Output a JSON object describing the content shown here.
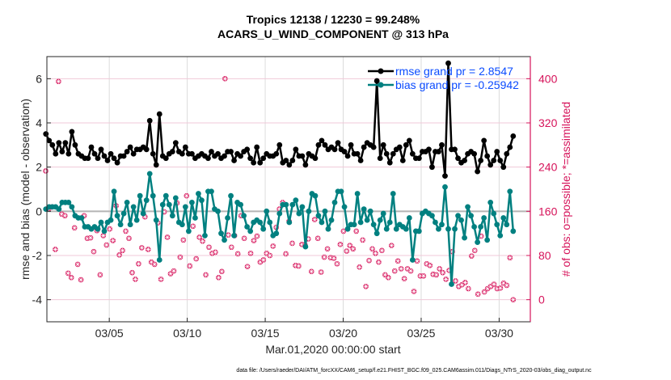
{
  "chart_data": {
    "type": "line",
    "title": "Tropics 12138 / 12230 = 99.248%",
    "subtitle": "ACARS_U_WIND_COMPONENT @ 313 hPa",
    "xlabel": "Mar.01,2020 00:00:00 start",
    "ylabel": "rmse and bias (model - observation)",
    "y2label": "# of obs: o=possible; *=assimilated",
    "footnote": "data file: /Users/raeder/DAI/ATM_forcXX/CAM6_setup/f.e21.FHIST_BGC.f09_025.CAM6assim.011/Diags_NTrS_2020-03/obs_diag_output.nc",
    "xlim": [
      1,
      32
    ],
    "ylim": [
      -5,
      7
    ],
    "y2lim": [
      -40,
      440
    ],
    "x_ticks": [
      {
        "value": 5,
        "label": "03/05"
      },
      {
        "value": 10,
        "label": "03/10"
      },
      {
        "value": 15,
        "label": "03/15"
      },
      {
        "value": 20,
        "label": "03/20"
      },
      {
        "value": 25,
        "label": "03/25"
      },
      {
        "value": 30,
        "label": "03/30"
      }
    ],
    "y_ticks": [
      {
        "value": -4,
        "label": "-4"
      },
      {
        "value": -2,
        "label": "-2"
      },
      {
        "value": 0,
        "label": "0"
      },
      {
        "value": 2,
        "label": "2"
      },
      {
        "value": 4,
        "label": "4"
      },
      {
        "value": 6,
        "label": "6"
      }
    ],
    "y2_ticks": [
      {
        "value": 0,
        "label": "0"
      },
      {
        "value": 80,
        "label": "80"
      },
      {
        "value": 160,
        "label": "160"
      },
      {
        "value": 240,
        "label": "240"
      },
      {
        "value": 320,
        "label": "320"
      },
      {
        "value": 400,
        "label": "400"
      }
    ],
    "grid": true,
    "legend": {
      "position": "top-right",
      "entries": [
        {
          "label": "rmse grand pr = 2.8547",
          "color": "#000000"
        },
        {
          "label": "bias grand pr = -0.25942",
          "color": "#008080"
        }
      ]
    },
    "colors": {
      "rmse": "#000000",
      "bias": "#008080",
      "obs": "#d6135a",
      "zero_line": "#b4b4b4",
      "grid": "#f0c8d8",
      "legend_text": "#0a4bff"
    },
    "x_start": 1.125,
    "x_step": 0.25,
    "series": [
      {
        "name": "rmse",
        "values": [
          3.5,
          3.2,
          3.0,
          2.6,
          3.1,
          2.7,
          3.1,
          2.6,
          3.6,
          3.0,
          2.6,
          2.5,
          2.4,
          2.4,
          2.9,
          2.6,
          2.4,
          2.8,
          2.5,
          2.3,
          2.6,
          2.4,
          2.2,
          2.5,
          2.5,
          2.7,
          2.9,
          2.6,
          2.8,
          2.8,
          2.9,
          2.8,
          4.1,
          2.6,
          2.1,
          4.4,
          2.5,
          2.4,
          2.6,
          2.7,
          3.1,
          2.7,
          2.6,
          2.9,
          2.6,
          2.6,
          2.4,
          2.5,
          2.6,
          2.5,
          2.4,
          2.7,
          2.5,
          2.6,
          2.4,
          2.5,
          2.7,
          2.7,
          2.3,
          2.6,
          2.5,
          2.7,
          2.8,
          2.4,
          2.2,
          2.9,
          2.2,
          2.4,
          2.6,
          2.5,
          2.5,
          2.6,
          3.0,
          2.2,
          2.3,
          2.1,
          2.3,
          2.8,
          2.5,
          2.5,
          2.1,
          2.6,
          2.5,
          2.4,
          3.0,
          3.2,
          3.0,
          2.8,
          2.9,
          2.8,
          3.1,
          2.8,
          2.7,
          2.5,
          3.0,
          2.6,
          2.6,
          2.3,
          2.9,
          3.1,
          3.0,
          2.9,
          5.9,
          2.4,
          3.0,
          2.6,
          2.2,
          2.6,
          2.8,
          2.9,
          2.3,
          3.0,
          3.2,
          2.6,
          2.4,
          2.4,
          2.7,
          2.7,
          2.8,
          2.0,
          2.7,
          2.7,
          3.0,
          1.6,
          6.7,
          2.8,
          2.8,
          2.4,
          2.2,
          2.3,
          2.6,
          2.7,
          2.6,
          1.8,
          2.3,
          3.2,
          2.5,
          2.1,
          2.3,
          2.7,
          2.3,
          2.0,
          2.6,
          2.9,
          3.4
        ],
        "color": "#000000"
      },
      {
        "name": "bias",
        "values": [
          0.1,
          0.2,
          0.2,
          0.2,
          0.1,
          0.4,
          0.4,
          0.4,
          0.2,
          -0.2,
          -0.3,
          -0.3,
          -0.7,
          -0.7,
          -0.8,
          -0.7,
          -0.8,
          -0.5,
          -0.9,
          -0.5,
          -0.4,
          0.9,
          -0.2,
          -0.6,
          -0.1,
          0.4,
          -0.6,
          0.2,
          -0.4,
          0.7,
          -0.1,
          0.5,
          1.7,
          0.7,
          -0.4,
          -2.2,
          0.3,
          0.7,
          0.3,
          -0.2,
          0.6,
          -0.5,
          -0.6,
          0.2,
          -0.9,
          0.4,
          -0.3,
          0.8,
          0.5,
          -1.1,
          0.9,
          0.9,
          0.1,
          0.0,
          -1.0,
          -1.3,
          -0.3,
          0.7,
          -1.1,
          0.4,
          0.3,
          -0.2,
          -0.7,
          -0.9,
          -0.5,
          -0.4,
          -0.5,
          -0.8,
          0.0,
          -0.5,
          -1.1,
          -1.0,
          -0.1,
          0.3,
          0.3,
          -0.5,
          0.3,
          0.5,
          -0.1,
          0.2,
          -1.6,
          0.0,
          0.8,
          0.7,
          -0.2,
          -0.5,
          0.0,
          -0.8,
          -0.4,
          0.4,
          0.9,
          0.9,
          0.2,
          -0.8,
          -0.6,
          -0.6,
          0.8,
          -0.5,
          0.1,
          -0.4,
          0.0,
          -0.6,
          -1.0,
          -0.4,
          -0.1,
          -0.8,
          -0.5,
          0.8,
          -0.8,
          -0.6,
          -0.7,
          -0.8,
          -0.3,
          -2.2,
          -0.9,
          -0.9,
          -0.1,
          0.0,
          -0.1,
          -0.2,
          -0.5,
          -0.8,
          -0.6,
          1.1,
          -0.8,
          -3.3,
          -0.8,
          -0.2,
          -0.4,
          -1.2,
          0.2,
          -0.2,
          -0.7,
          -1.4,
          -0.7,
          -0.3,
          -1.3,
          0.4,
          -0.1,
          -0.6,
          -1.1,
          -0.3,
          -0.6,
          0.9,
          -0.9
        ],
        "color": "#008080"
      },
      {
        "name": "obs_assimilated",
        "axis": "right",
        "values": [
          233,
          165,
          168,
          91,
          395,
          155,
          152,
          48,
          40,
          130,
          64,
          36,
          152,
          111,
          112,
          87,
          125,
          45,
          116,
          99,
          128,
          107,
          170,
          81,
          89,
          124,
          111,
          49,
          37,
          65,
          94,
          150,
          91,
          68,
          64,
          139,
          37,
          159,
          113,
          47,
          52,
          175,
          77,
          108,
          188,
          61,
          133,
          74,
          113,
          106,
          45,
          95,
          84,
          86,
          40,
          51,
          400,
          117,
          95,
          116,
          83,
          152,
          111,
          60,
          84,
          107,
          115,
          68,
          72,
          84,
          80,
          97,
          131,
          164,
          176,
          83,
          142,
          102,
          62,
          61,
          100,
          99,
          110,
          51,
          145,
          111,
          50,
          77,
          92,
          76,
          75,
          65,
          100,
          124,
          88,
          98,
          92,
          124,
          59,
          108,
          24,
          71,
          92,
          84,
          68,
          89,
          45,
          40,
          98,
          52,
          70,
          56,
          38,
          56,
          52,
          15,
          70,
          43,
          43,
          65,
          62,
          46,
          45,
          56,
          49,
          37,
          53,
          87,
          34,
          24,
          27,
          31,
          20,
          79,
          89,
          10,
          115,
          14,
          20,
          24,
          28,
          20,
          21,
          30,
          26,
          76,
          0
        ],
        "color": "#d6135a"
      }
    ]
  }
}
